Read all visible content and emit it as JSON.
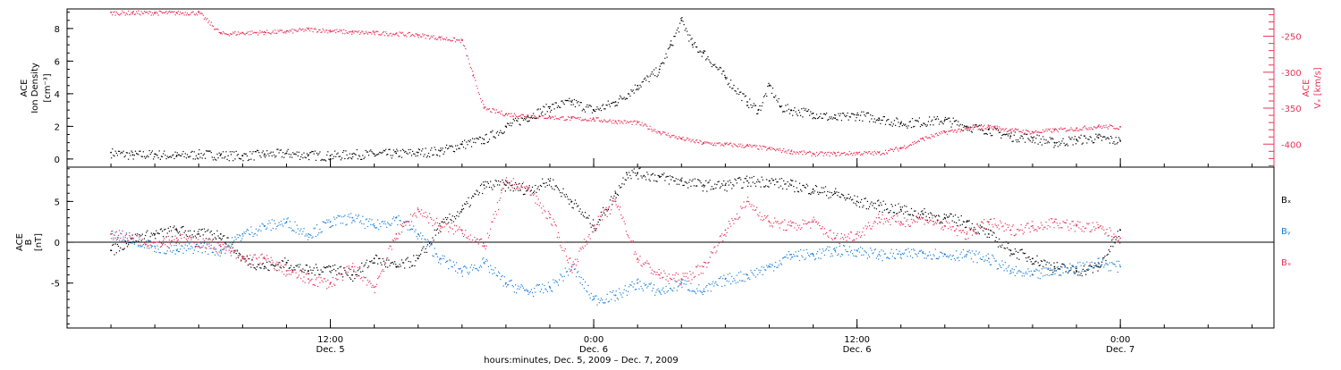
{
  "colors": {
    "black": "#000000",
    "red": "#e8335a",
    "blue": "#1a7fd9"
  },
  "chart_data": [
    {
      "type": "scatter",
      "panel": "top",
      "ylabel_left": [
        "ACE",
        "Ion Density",
        "[cm⁻³]"
      ],
      "ylabel_right": [
        "ACE",
        "Vₓ [km/s]"
      ],
      "ylim_left": [
        -0.5,
        9.2
      ],
      "ylim_right": [
        -432,
        -212
      ],
      "yticks_left": [
        0,
        2,
        4,
        6,
        8
      ],
      "yticks_right": [
        -250,
        -300,
        -350,
        -400
      ],
      "series": [
        {
          "name": "",
          "axis": "left",
          "color": "black",
          "points": [
            [
              0.0,
              0.4
            ],
            [
              1.0,
              0.25
            ],
            [
              2.0,
              0.3
            ],
            [
              3.0,
              0.2
            ],
            [
              4.0,
              0.3
            ],
            [
              5.0,
              0.25
            ],
            [
              6.0,
              0.2
            ],
            [
              7.0,
              0.3
            ],
            [
              8.0,
              0.35
            ],
            [
              9.0,
              0.25
            ],
            [
              10.0,
              0.2
            ],
            [
              11.0,
              0.3
            ],
            [
              12.0,
              0.3
            ],
            [
              13.0,
              0.35
            ],
            [
              14.0,
              0.4
            ],
            [
              15.0,
              0.5
            ],
            [
              16.0,
              0.9
            ],
            [
              17.0,
              1.2
            ],
            [
              18.0,
              2.0
            ],
            [
              19.0,
              2.6
            ],
            [
              20.0,
              3.2
            ],
            [
              21.0,
              3.5
            ],
            [
              22.0,
              3.0
            ],
            [
              23.0,
              3.5
            ],
            [
              24.0,
              4.5
            ],
            [
              25.0,
              5.5
            ],
            [
              25.5,
              7.0
            ],
            [
              26.0,
              8.5
            ],
            [
              26.5,
              7.0
            ],
            [
              27.0,
              6.5
            ],
            [
              28.0,
              5.0
            ],
            [
              29.0,
              3.5
            ],
            [
              29.5,
              3.0
            ],
            [
              30.0,
              4.5
            ],
            [
              30.5,
              3.2
            ],
            [
              31.0,
              3.0
            ],
            [
              32.0,
              2.8
            ],
            [
              33.0,
              2.5
            ],
            [
              34.0,
              2.7
            ],
            [
              35.0,
              2.5
            ],
            [
              36.0,
              2.2
            ],
            [
              38.0,
              2.4
            ],
            [
              39.0,
              2.0
            ],
            [
              40.0,
              1.8
            ],
            [
              41.0,
              1.4
            ],
            [
              42.0,
              1.3
            ],
            [
              43.0,
              1.0
            ],
            [
              44.0,
              1.2
            ],
            [
              45.0,
              1.3
            ],
            [
              46.0,
              1.1
            ]
          ]
        },
        {
          "name": "",
          "axis": "right",
          "color": "red",
          "points": [
            [
              0.0,
              -217
            ],
            [
              1.0,
              -217
            ],
            [
              2.0,
              -217
            ],
            [
              3.0,
              -217
            ],
            [
              4.0,
              -217
            ],
            [
              5.0,
              -246
            ],
            [
              6.0,
              -245
            ],
            [
              7.0,
              -244
            ],
            [
              8.0,
              -243
            ],
            [
              9.0,
              -240
            ],
            [
              10.0,
              -242
            ],
            [
              11.0,
              -244
            ],
            [
              12.0,
              -245
            ],
            [
              13.0,
              -246
            ],
            [
              14.0,
              -248
            ],
            [
              15.0,
              -252
            ],
            [
              16.0,
              -256
            ],
            [
              16.5,
              -305
            ],
            [
              17.0,
              -350
            ],
            [
              18.0,
              -358
            ],
            [
              19.0,
              -360
            ],
            [
              20.0,
              -362
            ],
            [
              21.0,
              -364
            ],
            [
              22.0,
              -365
            ],
            [
              23.0,
              -368
            ],
            [
              24.0,
              -370
            ],
            [
              25.0,
              -383
            ],
            [
              26.0,
              -392
            ],
            [
              27.0,
              -398
            ],
            [
              28.0,
              -400
            ],
            [
              29.0,
              -402
            ],
            [
              30.0,
              -406
            ],
            [
              31.0,
              -410
            ],
            [
              32.0,
              -413
            ],
            [
              33.0,
              -413
            ],
            [
              34.0,
              -412
            ],
            [
              35.0,
              -412
            ],
            [
              36.0,
              -405
            ],
            [
              37.0,
              -392
            ],
            [
              38.0,
              -383
            ],
            [
              39.0,
              -378
            ],
            [
              40.0,
              -375
            ],
            [
              41.0,
              -380
            ],
            [
              42.0,
              -383
            ],
            [
              43.0,
              -380
            ],
            [
              44.0,
              -378
            ],
            [
              45.0,
              -375
            ],
            [
              46.0,
              -376
            ]
          ]
        }
      ]
    },
    {
      "type": "scatter",
      "panel": "bottom",
      "ylabel_left": [
        "ACE",
        "B",
        "[nT]"
      ],
      "ylim": [
        -10.5,
        9.2
      ],
      "yticks": [
        -5,
        0,
        5
      ],
      "legend": [
        "Bₓ",
        "Bᵧ",
        "Bₓ"
      ],
      "legend_placement": "right",
      "series": [
        {
          "name": "Bₓ",
          "color": "black",
          "points": [
            [
              0.0,
              -1.0
            ],
            [
              1.0,
              0.5
            ],
            [
              2.0,
              1.0
            ],
            [
              3.0,
              1.5
            ],
            [
              4.0,
              1.0
            ],
            [
              5.0,
              1.0
            ],
            [
              6.0,
              -2.0
            ],
            [
              7.0,
              -3.0
            ],
            [
              8.0,
              -2.5
            ],
            [
              9.0,
              -3.5
            ],
            [
              10.0,
              -3.0
            ],
            [
              11.0,
              -4.0
            ],
            [
              12.0,
              -2.0
            ],
            [
              13.0,
              -3.0
            ],
            [
              14.0,
              -2.0
            ],
            [
              15.0,
              2.0
            ],
            [
              16.0,
              4.0
            ],
            [
              17.0,
              7.0
            ],
            [
              18.0,
              7.0
            ],
            [
              19.0,
              6.5
            ],
            [
              20.0,
              7.5
            ],
            [
              21.0,
              5.0
            ],
            [
              22.0,
              2.0
            ],
            [
              23.0,
              6.0
            ],
            [
              23.5,
              8.5
            ],
            [
              24.0,
              8.5
            ],
            [
              25.0,
              8.0
            ],
            [
              26.0,
              7.5
            ],
            [
              27.0,
              7.0
            ],
            [
              28.0,
              7.0
            ],
            [
              29.0,
              7.5
            ],
            [
              30.0,
              7.5
            ],
            [
              31.0,
              7.0
            ],
            [
              32.0,
              6.5
            ],
            [
              33.0,
              6.0
            ],
            [
              34.0,
              5.0
            ],
            [
              35.0,
              4.5
            ],
            [
              36.0,
              4.0
            ],
            [
              37.0,
              3.5
            ],
            [
              38.0,
              3.0
            ],
            [
              39.0,
              2.5
            ],
            [
              40.0,
              1.0
            ],
            [
              41.0,
              -1.0
            ],
            [
              42.0,
              -2.0
            ],
            [
              43.0,
              -3.0
            ],
            [
              44.0,
              -3.5
            ],
            [
              45.0,
              -3.0
            ],
            [
              46.0,
              1.5
            ]
          ]
        },
        {
          "name": "Bᵧ",
          "color": "blue",
          "points": [
            [
              0.0,
              1.0
            ],
            [
              1.0,
              0.5
            ],
            [
              2.0,
              -0.5
            ],
            [
              3.0,
              -1.0
            ],
            [
              4.0,
              -0.5
            ],
            [
              5.0,
              -1.0
            ],
            [
              6.0,
              1.0
            ],
            [
              7.0,
              2.0
            ],
            [
              8.0,
              2.5
            ],
            [
              9.0,
              1.0
            ],
            [
              10.0,
              2.5
            ],
            [
              11.0,
              3.0
            ],
            [
              12.0,
              2.0
            ],
            [
              13.0,
              3.0
            ],
            [
              14.0,
              1.0
            ],
            [
              15.0,
              -2.0
            ],
            [
              16.0,
              -3.5
            ],
            [
              17.0,
              -2.5
            ],
            [
              18.0,
              -5.0
            ],
            [
              19.0,
              -6.0
            ],
            [
              20.0,
              -5.5
            ],
            [
              21.0,
              -3.0
            ],
            [
              22.0,
              -7.0
            ],
            [
              23.0,
              -6.5
            ],
            [
              24.0,
              -5.0
            ],
            [
              25.0,
              -6.0
            ],
            [
              26.0,
              -5.0
            ],
            [
              27.0,
              -6.0
            ],
            [
              28.0,
              -4.5
            ],
            [
              29.0,
              -4.0
            ],
            [
              30.0,
              -3.0
            ],
            [
              31.0,
              -1.5
            ],
            [
              32.0,
              -1.5
            ],
            [
              33.0,
              -1.0
            ],
            [
              34.0,
              -1.0
            ],
            [
              35.0,
              -1.5
            ],
            [
              36.0,
              -1.5
            ],
            [
              37.0,
              -1.2
            ],
            [
              38.0,
              -1.5
            ],
            [
              39.0,
              -1.5
            ],
            [
              40.0,
              -2.0
            ],
            [
              41.0,
              -3.5
            ],
            [
              42.0,
              -4.0
            ],
            [
              43.0,
              -3.5
            ],
            [
              44.0,
              -3.0
            ],
            [
              45.0,
              -2.5
            ],
            [
              46.0,
              -3.0
            ]
          ]
        },
        {
          "name": "Bₓ",
          "color": "red",
          "points": [
            [
              0.0,
              1.0
            ],
            [
              1.0,
              0.5
            ],
            [
              2.0,
              0.0
            ],
            [
              3.0,
              0.5
            ],
            [
              4.0,
              0.0
            ],
            [
              5.0,
              -0.5
            ],
            [
              6.0,
              -2.0
            ],
            [
              7.0,
              -2.0
            ],
            [
              8.0,
              -3.5
            ],
            [
              9.0,
              -4.5
            ],
            [
              10.0,
              -5.0
            ],
            [
              11.0,
              -3.0
            ],
            [
              12.0,
              -5.5
            ],
            [
              13.0,
              1.0
            ],
            [
              14.0,
              4.0
            ],
            [
              15.0,
              2.0
            ],
            [
              16.0,
              1.5
            ],
            [
              17.0,
              -0.5
            ],
            [
              18.0,
              7.5
            ],
            [
              19.0,
              6.5
            ],
            [
              20.0,
              3.0
            ],
            [
              21.0,
              -3.0
            ],
            [
              22.0,
              2.0
            ],
            [
              23.0,
              5.0
            ],
            [
              24.0,
              -2.0
            ],
            [
              25.0,
              -4.0
            ],
            [
              26.0,
              -4.5
            ],
            [
              27.0,
              -3.0
            ],
            [
              28.0,
              1.5
            ],
            [
              29.0,
              5.0
            ],
            [
              30.0,
              2.5
            ],
            [
              31.0,
              2.0
            ],
            [
              32.0,
              2.5
            ],
            [
              33.0,
              0.5
            ],
            [
              34.0,
              1.0
            ],
            [
              35.0,
              3.0
            ],
            [
              36.0,
              2.5
            ],
            [
              37.0,
              3.0
            ],
            [
              38.0,
              2.0
            ],
            [
              39.0,
              1.0
            ],
            [
              40.0,
              2.5
            ],
            [
              41.0,
              1.5
            ],
            [
              42.0,
              2.0
            ],
            [
              43.0,
              2.5
            ],
            [
              44.0,
              2.0
            ],
            [
              45.0,
              1.8
            ],
            [
              46.0,
              0.5
            ]
          ]
        }
      ]
    }
  ],
  "x_axis": {
    "xlim": [
      -2.0,
      53.0
    ],
    "ticks": [
      {
        "x": 10,
        "label": "12:00",
        "sub": "Dec. 5"
      },
      {
        "x": 22,
        "label": "0:00",
        "sub": "Dec. 6"
      },
      {
        "x": 34,
        "label": "12:00",
        "sub": "Dec. 6"
      },
      {
        "x": 46,
        "label": "0:00",
        "sub": "Dec. 7"
      }
    ],
    "xlabel": "hours:minutes, Dec. 5, 2009 – Dec. 7, 2009"
  }
}
